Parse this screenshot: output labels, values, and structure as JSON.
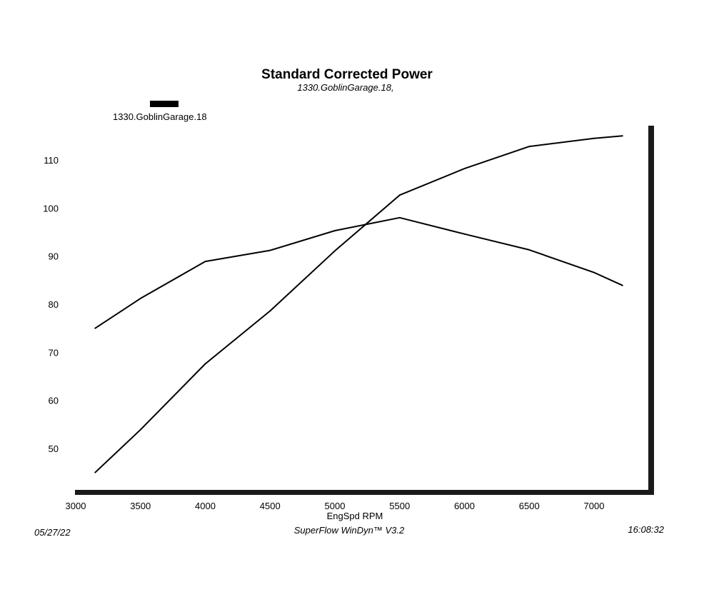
{
  "chart_data": {
    "type": "line",
    "title": "Standard Corrected Power",
    "subtitle": "1330.GoblinGarage.18,",
    "xlabel": "EngSpd  RPM",
    "ylabel": "",
    "xlim": [
      3000,
      7500
    ],
    "ylim": [
      40,
      117
    ],
    "x_ticks": [
      3000,
      3500,
      4000,
      4500,
      5000,
      5500,
      6000,
      6500,
      7000
    ],
    "y_ticks": [
      50,
      60,
      70,
      80,
      90,
      100,
      110
    ],
    "legend": {
      "label": "1330.GoblinGarage.18",
      "placement": "top-left"
    },
    "series": [
      {
        "values": [
          {
            "x": 3150,
            "y": 75.0
          },
          {
            "x": 3500,
            "y": 81.2
          },
          {
            "x": 4000,
            "y": 88.9
          },
          {
            "x": 4500,
            "y": 91.2
          },
          {
            "x": 5000,
            "y": 95.3
          },
          {
            "x": 5500,
            "y": 98.0
          },
          {
            "x": 6000,
            "y": 94.6
          },
          {
            "x": 6500,
            "y": 91.3
          },
          {
            "x": 7000,
            "y": 86.6
          },
          {
            "x": 7220,
            "y": 83.9
          }
        ]
      },
      {
        "values": [
          {
            "x": 3150,
            "y": 45.0
          },
          {
            "x": 3500,
            "y": 53.9
          },
          {
            "x": 4000,
            "y": 67.6
          },
          {
            "x": 4500,
            "y": 78.6
          },
          {
            "x": 5000,
            "y": 91.1
          },
          {
            "x": 5500,
            "y": 102.7
          },
          {
            "x": 6000,
            "y": 108.2
          },
          {
            "x": 6500,
            "y": 112.8
          },
          {
            "x": 7000,
            "y": 114.5
          },
          {
            "x": 7220,
            "y": 115.0
          }
        ]
      }
    ]
  },
  "footer": {
    "date": "05/27/22",
    "software": "SuperFlow WinDyn™ V3.2",
    "time": "16:08:32"
  },
  "colors": {
    "line": "#000000",
    "frame": "#1a1a1a",
    "background": "#ffffff"
  }
}
